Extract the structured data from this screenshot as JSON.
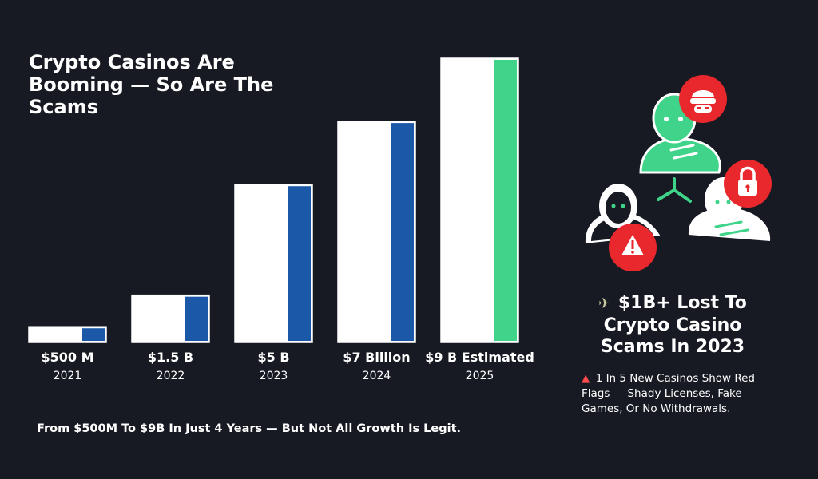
{
  "title": "Crypto Casinos Are\nBooming — So Are The\nScams",
  "chart_data": {
    "type": "bar",
    "title": "Crypto Casinos Are Booming — So Are The Scams",
    "categories": [
      "2021",
      "2022",
      "2023",
      "2024",
      "2025"
    ],
    "value_labels": [
      "$500 M",
      "$1.5 B",
      "$5 B",
      "$7 Billion",
      "$9 B Estimated"
    ],
    "values": [
      0.5,
      1.5,
      5,
      7,
      9
    ],
    "ylim": [
      0,
      9
    ],
    "grid": false,
    "legend": "none",
    "colors": {
      "bar_fill": "#ffffff",
      "accent_actual": "#1b58a8",
      "accent_estimated": "#40d48a"
    },
    "estimated": [
      false,
      false,
      false,
      false,
      true
    ]
  },
  "footnote": "From $500M To $9B In Just 4 Years — But Not All Growth Is Legit.",
  "stat": {
    "icon": "money-with-wings-icon",
    "headline": "$1B+ Lost To Crypto Casino Scams In 2023",
    "detail_icon": "siren-icon",
    "detail": "1 In 5 New Casinos Show Red Flags — Shady Licenses, Fake Games, Or No Withdrawals."
  },
  "illustration": {
    "name": "scam-network-illustration",
    "colors": {
      "green": "#40d48a",
      "red": "#e8282c",
      "white": "#ffffff"
    }
  }
}
